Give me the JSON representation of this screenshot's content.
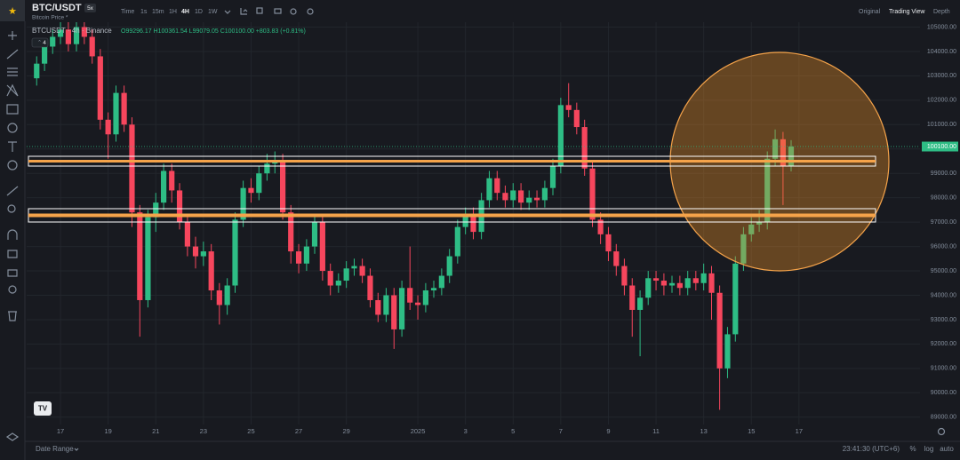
{
  "header": {
    "symbol": "BTC/USDT",
    "leverage": "5x",
    "subtitle": "Bitcoin Price *",
    "intervals": [
      "Time",
      "1s",
      "15m",
      "1H",
      "4H",
      "1D",
      "1W"
    ],
    "views": [
      "Original",
      "Trading View",
      "Depth"
    ],
    "indicator_count": "4"
  },
  "chart_data": {
    "type": "candlestick",
    "legend_title": "BTCUSDT · 4h · Binance",
    "legend_values": "O99296.17 H100361.54 L99079.05 C100100.00 +803.83 (+0.81%)",
    "up_color": "#2ebd85",
    "down_color": "#f6465d",
    "grid": true,
    "xlim": [
      15.58,
      53.08
    ],
    "xticks": [
      17,
      19,
      21,
      23,
      25,
      27,
      29,
      {
        "value": 32,
        "label": "2025"
      },
      {
        "value": 34,
        "label": "3"
      },
      {
        "value": 36,
        "label": "5"
      },
      {
        "value": 38,
        "label": "7"
      },
      {
        "value": 40,
        "label": "9"
      },
      {
        "value": 42,
        "label": "11"
      },
      {
        "value": 44,
        "label": "13"
      },
      {
        "value": 46,
        "label": "15"
      },
      {
        "value": 48,
        "label": "17"
      }
    ],
    "ylim": [
      88700,
      105200
    ],
    "yticks": [
      {
        "value": 89000,
        "label": "89000.00"
      },
      {
        "value": 90000,
        "label": "90000.00"
      },
      {
        "value": 91000,
        "label": "91000.00"
      },
      {
        "value": 92000,
        "label": "92000.00"
      },
      {
        "value": 93000,
        "label": "93000.00"
      },
      {
        "value": 94000,
        "label": "94000.00"
      },
      {
        "value": 95000,
        "label": "95000.00"
      },
      {
        "value": 96000,
        "label": "96000.00"
      },
      {
        "value": 97000,
        "label": "97000.00"
      },
      {
        "value": 98000,
        "label": "98000.00"
      },
      {
        "value": 99000,
        "label": "99000.00"
      },
      {
        "value": 100000,
        "label": "100000.00"
      },
      {
        "value": 101000,
        "label": "101000.00"
      },
      {
        "value": 102000,
        "label": "102000.00"
      },
      {
        "value": 103000,
        "label": "103000.00"
      },
      {
        "value": 104000,
        "label": "104000.00"
      },
      {
        "value": 105000,
        "label": "105000.00"
      }
    ],
    "last_price": {
      "value": 100100,
      "label": "100100.00"
    },
    "x": [
      16,
      16.33,
      16.67,
      17,
      17.33,
      17.67,
      18,
      18.33,
      18.67,
      19,
      19.33,
      19.67,
      20,
      20.33,
      20.67,
      21,
      21.33,
      21.67,
      22,
      22.33,
      22.67,
      23,
      23.33,
      23.67,
      24,
      24.33,
      24.67,
      25,
      25.33,
      25.67,
      26,
      26.33,
      26.67,
      27,
      27.33,
      27.67,
      28,
      28.33,
      28.67,
      29,
      29.33,
      29.67,
      30,
      30.33,
      30.67,
      31,
      31.33,
      31.67,
      32,
      32.33,
      32.67,
      33,
      33.33,
      33.67,
      34,
      34.33,
      34.67,
      35,
      35.33,
      35.67,
      36,
      36.33,
      36.67,
      37,
      37.33,
      37.67,
      38,
      38.33,
      38.67,
      39,
      39.33,
      39.67,
      40,
      40.33,
      40.67,
      41,
      41.33,
      41.67,
      42,
      42.33,
      42.67,
      43,
      43.33,
      43.67,
      44,
      44.33,
      44.67,
      45,
      45.33,
      45.67,
      46,
      46.33,
      46.67,
      47,
      47.33,
      47.67
    ],
    "open": [
      102900,
      103500,
      104200,
      104600,
      104900,
      104300,
      105000,
      104600,
      103800,
      101200,
      100600,
      102300,
      101000,
      97400,
      93800,
      97200,
      97800,
      99100,
      98300,
      97000,
      96000,
      95600,
      95800,
      94200,
      93600,
      94400,
      97100,
      98400,
      98200,
      99000,
      99400,
      99500,
      97400,
      95800,
      95300,
      96000,
      97000,
      95000,
      94400,
      94600,
      95100,
      95200,
      94800,
      93800,
      93200,
      94000,
      92600,
      94300,
      93700,
      93600,
      94200,
      94300,
      94800,
      95600,
      96800,
      97300,
      96600,
      97900,
      98800,
      98200,
      97900,
      98300,
      97800,
      98000,
      97900,
      98400,
      99300,
      101800,
      101600,
      100900,
      99200,
      97100,
      96500,
      95800,
      95200,
      94400,
      93400,
      93900,
      94700,
      94600,
      94400,
      94500,
      94300,
      94700,
      94500,
      94900,
      94100,
      91000,
      92400,
      95300,
      96500,
      96900,
      97000,
      99600,
      100400,
      99296.17
    ],
    "high": [
      103800,
      104500,
      104900,
      105200,
      105200,
      105200,
      105200,
      104900,
      104100,
      101500,
      102600,
      102600,
      101300,
      97700,
      97500,
      98200,
      99400,
      99400,
      98600,
      97300,
      96400,
      96200,
      96100,
      94500,
      94700,
      97400,
      98700,
      98800,
      99300,
      99800,
      99900,
      99800,
      97700,
      96100,
      96300,
      97300,
      97300,
      95300,
      94900,
      95400,
      95500,
      95500,
      95100,
      94100,
      94300,
      94300,
      94600,
      96000,
      94000,
      94500,
      94600,
      95100,
      95900,
      97100,
      97600,
      97600,
      98200,
      99100,
      99100,
      98500,
      98600,
      98600,
      98300,
      98300,
      98700,
      99600,
      102100,
      102700,
      101900,
      101200,
      99500,
      97400,
      96800,
      96100,
      95500,
      94700,
      94200,
      95000,
      95000,
      94900,
      94800,
      94800,
      95000,
      95000,
      95300,
      95200,
      94400,
      92700,
      95600,
      96800,
      97200,
      97500,
      99900,
      100800,
      100700,
      100361.54
    ],
    "low": [
      102600,
      103200,
      103900,
      104300,
      104000,
      104000,
      104300,
      103500,
      100800,
      99600,
      100300,
      100700,
      96800,
      92300,
      93500,
      96600,
      97500,
      97800,
      96700,
      95600,
      95100,
      95200,
      93800,
      92800,
      93200,
      94100,
      96800,
      97800,
      97900,
      98700,
      99000,
      97100,
      95300,
      94900,
      95000,
      95700,
      94600,
      94000,
      94100,
      94300,
      94800,
      94500,
      93500,
      92900,
      92900,
      91800,
      92300,
      93400,
      93000,
      93300,
      93900,
      94000,
      94500,
      95300,
      96500,
      96300,
      96300,
      97600,
      97900,
      97600,
      97600,
      97500,
      97500,
      97600,
      97600,
      98100,
      99000,
      101300,
      100600,
      98900,
      96800,
      96100,
      95400,
      94800,
      94000,
      92300,
      91500,
      93600,
      94200,
      94000,
      94100,
      94000,
      94000,
      94200,
      94200,
      93000,
      89300,
      90600,
      92100,
      95000,
      96200,
      96600,
      96700,
      99300,
      97700,
      99079.05
    ],
    "close": [
      103500,
      104200,
      104600,
      104900,
      104300,
      105000,
      104600,
      103800,
      101200,
      100600,
      102300,
      101000,
      97400,
      93800,
      97200,
      97800,
      99100,
      98300,
      97000,
      96000,
      95600,
      95800,
      94200,
      93600,
      94400,
      97100,
      98400,
      98200,
      99000,
      99400,
      99500,
      97400,
      95800,
      95300,
      96000,
      97000,
      95000,
      94400,
      94600,
      95100,
      95200,
      94800,
      93800,
      93200,
      94000,
      92600,
      94300,
      93700,
      93600,
      94200,
      94300,
      94800,
      95600,
      96800,
      97300,
      96600,
      97900,
      98800,
      98200,
      97900,
      98300,
      97800,
      98000,
      97900,
      98400,
      99300,
      101800,
      101600,
      100900,
      99200,
      97100,
      96500,
      95800,
      95200,
      94400,
      93400,
      93900,
      94700,
      94600,
      94400,
      94500,
      94300,
      94700,
      94500,
      94900,
      94100,
      91000,
      92400,
      95300,
      96500,
      96900,
      97000,
      99600,
      100400,
      99300,
      100100
    ]
  },
  "footer": {
    "date_range": "Date Range",
    "clock": "23:41:30 (UTC+6)",
    "options": [
      "%",
      "log",
      "auto"
    ]
  }
}
